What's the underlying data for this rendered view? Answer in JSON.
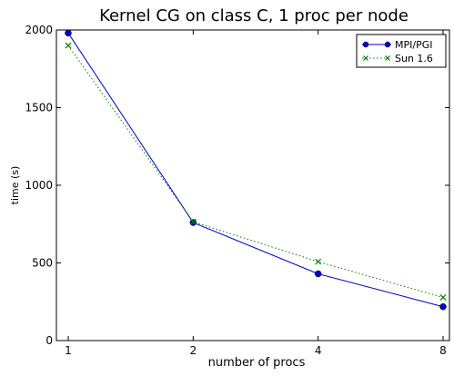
{
  "chart_data": {
    "type": "line",
    "title": "Kernel CG on class C, 1 proc per node",
    "xlabel": "number of procs",
    "ylabel": "time (s)",
    "x_scale": "log2",
    "x": [
      1,
      2,
      4,
      8
    ],
    "x_tick_labels": [
      "1",
      "2",
      "4",
      "8"
    ],
    "ylim": [
      0,
      2000
    ],
    "y_ticks": [
      0,
      500,
      1000,
      1500,
      2000
    ],
    "y_tick_labels": [
      "0",
      "500",
      "1000",
      "1500",
      "2000"
    ],
    "legend_position": "top-right",
    "series": [
      {
        "name": "MPI/PGI",
        "values": [
          1980,
          760,
          430,
          218
        ],
        "color": "#0000cc",
        "marker": "circle",
        "line": "solid"
      },
      {
        "name": "Sun 1.6",
        "values": [
          1900,
          765,
          508,
          278
        ],
        "color": "#007f00",
        "marker": "x",
        "line": "dotted"
      }
    ]
  }
}
